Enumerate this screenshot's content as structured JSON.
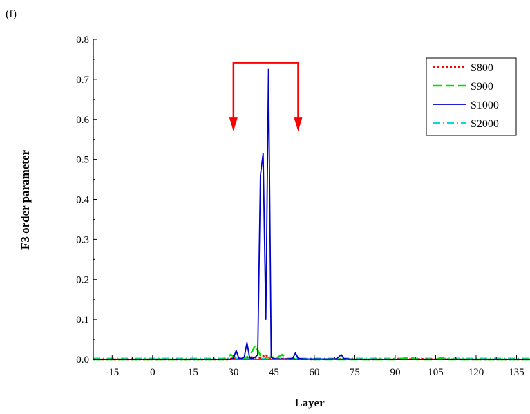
{
  "panel_label": "(f)",
  "chart_data": {
    "type": "line",
    "title": "",
    "xlabel": "Layer",
    "ylabel": "F3 order parameter",
    "xlim": [
      -22,
      140
    ],
    "ylim": [
      0,
      0.8
    ],
    "x_ticks": [
      -15,
      0,
      15,
      30,
      45,
      60,
      75,
      90,
      105,
      120,
      135
    ],
    "y_ticks": [
      0.0,
      0.1,
      0.2,
      0.3,
      0.4,
      0.5,
      0.6,
      0.7,
      0.8
    ],
    "x_tick_labels": [
      "-15",
      "0",
      "15",
      "30",
      "45",
      "60",
      "75",
      "90",
      "105",
      "120",
      "135"
    ],
    "y_tick_labels": [
      "0.0",
      "0.1",
      "0.2",
      "0.3",
      "0.4",
      "0.5",
      "0.6",
      "0.7",
      "0.8"
    ],
    "legend_position": "top-right",
    "series": [
      {
        "name": "S800",
        "color": "#ff0000",
        "dash": "short-dot",
        "x": [
          -22,
          28,
          30,
          33,
          36,
          40,
          42,
          43,
          44,
          46,
          50,
          60,
          70,
          80,
          100,
          120,
          140
        ],
        "y": [
          0,
          0,
          0.004,
          0.002,
          0.006,
          0.004,
          0.012,
          0.004,
          0.001,
          0.002,
          0.001,
          0,
          0.001,
          0,
          0.001,
          0,
          0
        ]
      },
      {
        "name": "S900",
        "color": "#00dd00",
        "dash": "long-dash",
        "x": [
          -22,
          26,
          29,
          31,
          33,
          35,
          37,
          38,
          40,
          42,
          44,
          46,
          48,
          50,
          60,
          90,
          96,
          98,
          105,
          107,
          110,
          140
        ],
        "y": [
          0,
          0,
          0.012,
          0.004,
          0.002,
          0.006,
          0.02,
          0.035,
          0.01,
          0.004,
          0.006,
          0.004,
          0.012,
          0.002,
          0,
          0,
          0.005,
          0,
          0,
          0.004,
          0,
          0
        ]
      },
      {
        "name": "S1000",
        "color": "#0000cc",
        "dash": "solid",
        "x": [
          -22,
          29,
          30,
          31,
          32,
          33,
          34,
          35,
          36,
          37,
          38,
          39,
          40,
          41,
          42,
          43,
          44,
          45,
          46,
          50,
          52,
          53,
          54,
          56,
          60,
          68,
          69,
          70,
          71,
          75,
          140
        ],
        "y": [
          0,
          0,
          0.004,
          0.022,
          0.003,
          0.002,
          0.006,
          0.042,
          0.004,
          0.003,
          0.005,
          0.012,
          0.46,
          0.515,
          0.1,
          0.725,
          0.005,
          0.002,
          0.001,
          0.001,
          0.003,
          0.016,
          0.003,
          0.001,
          0.001,
          0.001,
          0.006,
          0.012,
          0.002,
          0,
          0
        ]
      },
      {
        "name": "S2000",
        "color": "#00dddd",
        "dash": "dash-dot",
        "x": [
          -22,
          140
        ],
        "y": [
          0.002,
          0.002
        ]
      }
    ],
    "annotations": [
      {
        "type": "bracket-arrows",
        "color": "#ff0000",
        "x_left": 30,
        "x_right": 54,
        "y_top": 0.742,
        "y_arrow_tip": 0.57
      }
    ]
  }
}
